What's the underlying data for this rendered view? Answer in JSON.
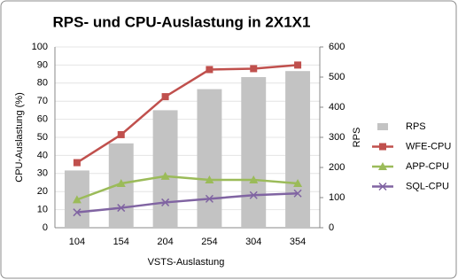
{
  "chart_data": {
    "type": "combo",
    "title": "RPS- und CPU-Auslastung in 2X1X1",
    "x_label": "VSTS-Auslastung",
    "y_label": "CPU-Auslastung (%)",
    "y2_label": "RPS",
    "categories": [
      "104",
      "154",
      "204",
      "254",
      "304",
      "354"
    ],
    "ylim": [
      0,
      100
    ],
    "yticks": [
      0,
      10,
      20,
      30,
      40,
      50,
      60,
      70,
      80,
      90,
      100
    ],
    "y2lim": [
      0,
      600
    ],
    "y2ticks": [
      0,
      100,
      200,
      300,
      400,
      500,
      600
    ],
    "grid": true,
    "legend": "right",
    "series": [
      {
        "name": "RPS",
        "type": "bar",
        "axis": "y2",
        "color": "#c3c3c3",
        "values": [
          190,
          280,
          390,
          460,
          500,
          520
        ]
      },
      {
        "name": "WFE-CPU",
        "type": "line",
        "marker": "square",
        "color": "#c0504d",
        "values": [
          36,
          51.5,
          72.5,
          87.5,
          88,
          90
        ]
      },
      {
        "name": "APP-CPU",
        "type": "line",
        "marker": "triangle",
        "color": "#9bbb59",
        "values": [
          15.5,
          24.5,
          28.5,
          26.5,
          26.5,
          24.5
        ]
      },
      {
        "name": "SQL-CPU",
        "type": "line",
        "marker": "cross",
        "color": "#8064a2",
        "values": [
          8.5,
          11,
          14,
          16,
          18,
          19
        ]
      }
    ]
  }
}
